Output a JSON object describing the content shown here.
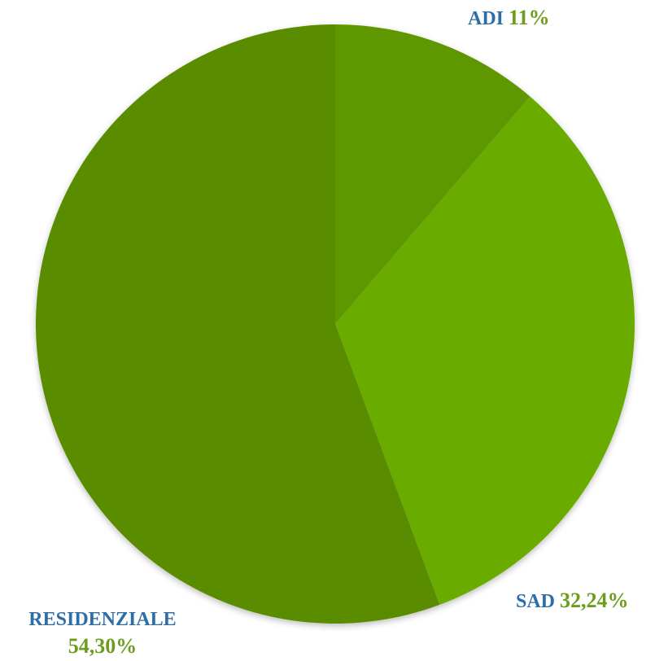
{
  "chart_data": {
    "type": "pie",
    "categories": [
      "ADI",
      "SAD",
      "RESIDENZIALE"
    ],
    "values": [
      11,
      32.24,
      54.3
    ],
    "value_labels": [
      "11%",
      "32,24%",
      "54,30%"
    ],
    "colors": [
      "#5e9700",
      "#6aab00",
      "#5a8c00"
    ]
  }
}
